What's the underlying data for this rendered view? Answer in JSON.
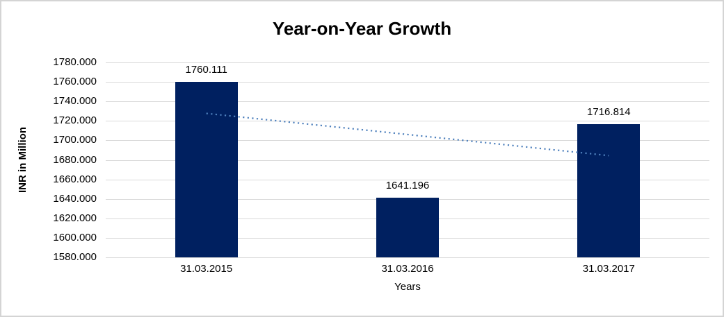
{
  "chart_data": {
    "type": "bar",
    "title": "Year-on-Year Growth",
    "categories": [
      "31.03.2015",
      "31.03.2016",
      "31.03.2017"
    ],
    "values": [
      1760.111,
      1641.196,
      1716.814
    ],
    "value_labels": [
      "1760.111",
      "1641.196",
      "1716.814"
    ],
    "xlabel": "Years",
    "ylabel": "INR in Million",
    "ylim": [
      1580,
      1780
    ],
    "ytick_step": 20,
    "ytick_labels": [
      "1580.000",
      "1600.000",
      "1620.000",
      "1640.000",
      "1660.000",
      "1680.000",
      "1700.000",
      "1720.000",
      "1740.000",
      "1760.000",
      "1780.000"
    ],
    "grid": true,
    "legend": "none",
    "bar_color": "#002060",
    "gridline_color": "#d9d9d9",
    "trendline": {
      "type": "linear",
      "style": "dotted",
      "color": "#4f81bd",
      "start_value": 1727.69,
      "end_value": 1684.39
    }
  }
}
